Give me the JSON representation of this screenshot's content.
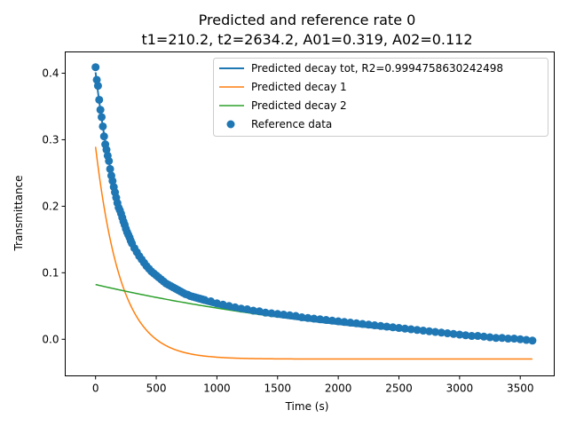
{
  "chart_data": {
    "type": "line",
    "title_line1": "Predicted and reference rate 0",
    "title_line2": "t1=210.2, t2=2634.2, A01=0.319, A02=0.112",
    "xlabel": "Time (s)",
    "ylabel": "Transmittance",
    "xlim": [
      -250,
      3780
    ],
    "ylim": [
      -0.055,
      0.432
    ],
    "x_ticks": [
      0,
      500,
      1000,
      1500,
      2000,
      2500,
      3000,
      3500
    ],
    "y_ticks": [
      0.0,
      0.1,
      0.2,
      0.3,
      0.4
    ],
    "x_tick_labels": [
      "0",
      "500",
      "1000",
      "1500",
      "2000",
      "2500",
      "3000",
      "3500"
    ],
    "y_tick_labels": [
      "0.0",
      "0.1",
      "0.2",
      "0.3",
      "0.4"
    ],
    "legend_position": "upper-right",
    "model": {
      "t_max": 3600,
      "tot": {
        "A1": 0.319,
        "t1": 210.2,
        "A2": 0.112,
        "t2": 2634.2,
        "offset": -0.0297
      },
      "decay1": {
        "A": 0.319,
        "t": 210.2,
        "offset": -0.0297
      },
      "decay2": {
        "A": 0.112,
        "t": 2634.2,
        "offset": -0.0297
      }
    },
    "series": [
      {
        "name": "Predicted decay tot, R2=0.9994758630242498",
        "kind": "line",
        "color": "#1f77b4",
        "width": 2
      },
      {
        "name": "Predicted decay 1",
        "kind": "line",
        "color": "#ff7f0e",
        "width": 1.5
      },
      {
        "name": "Predicted decay 2",
        "kind": "line",
        "color": "#2ca02c",
        "width": 1.5
      },
      {
        "name": "Reference data",
        "kind": "scatter",
        "color": "#1f77b4"
      }
    ],
    "reference_data": {
      "x": [
        0,
        10,
        20,
        30,
        40,
        50,
        60,
        70,
        80,
        90,
        100,
        110,
        120,
        130,
        140,
        150,
        160,
        170,
        180,
        190,
        200,
        210,
        220,
        230,
        240,
        250,
        260,
        270,
        280,
        290,
        300,
        320,
        340,
        360,
        380,
        400,
        420,
        440,
        460,
        480,
        500,
        520,
        540,
        560,
        580,
        600,
        620,
        640,
        660,
        680,
        700,
        720,
        740,
        760,
        780,
        800,
        820,
        840,
        860,
        880,
        900,
        950,
        1000,
        1050,
        1100,
        1150,
        1200,
        1250,
        1300,
        1350,
        1400,
        1450,
        1500,
        1550,
        1600,
        1650,
        1700,
        1750,
        1800,
        1850,
        1900,
        1950,
        2000,
        2050,
        2100,
        2150,
        2200,
        2250,
        2300,
        2350,
        2400,
        2450,
        2500,
        2550,
        2600,
        2650,
        2700,
        2750,
        2800,
        2850,
        2900,
        2950,
        3000,
        3050,
        3100,
        3150,
        3200,
        3250,
        3300,
        3350,
        3400,
        3450,
        3500,
        3550,
        3600
      ],
      "y": [
        0.409,
        0.39,
        0.381,
        0.36,
        0.345,
        0.334,
        0.32,
        0.305,
        0.293,
        0.285,
        0.276,
        0.268,
        0.256,
        0.246,
        0.238,
        0.229,
        0.221,
        0.213,
        0.205,
        0.198,
        0.194,
        0.189,
        0.183,
        0.177,
        0.172,
        0.166,
        0.161,
        0.157,
        0.153,
        0.148,
        0.144,
        0.137,
        0.131,
        0.125,
        0.12,
        0.115,
        0.11,
        0.106,
        0.102,
        0.099,
        0.096,
        0.093,
        0.09,
        0.087,
        0.084,
        0.082,
        0.08,
        0.078,
        0.076,
        0.074,
        0.072,
        0.07,
        0.068,
        0.067,
        0.065,
        0.064,
        0.063,
        0.062,
        0.061,
        0.06,
        0.059,
        0.057,
        0.054,
        0.052,
        0.05,
        0.048,
        0.046,
        0.045,
        0.043,
        0.042,
        0.04,
        0.039,
        0.038,
        0.037,
        0.036,
        0.035,
        0.033,
        0.032,
        0.031,
        0.03,
        0.029,
        0.028,
        0.027,
        0.026,
        0.025,
        0.024,
        0.023,
        0.022,
        0.021,
        0.02,
        0.019,
        0.018,
        0.017,
        0.016,
        0.015,
        0.014,
        0.013,
        0.012,
        0.011,
        0.01,
        0.009,
        0.008,
        0.007,
        0.006,
        0.005,
        0.005,
        0.004,
        0.003,
        0.002,
        0.002,
        0.001,
        0.001,
        0.0,
        -0.001,
        -0.002
      ]
    }
  }
}
